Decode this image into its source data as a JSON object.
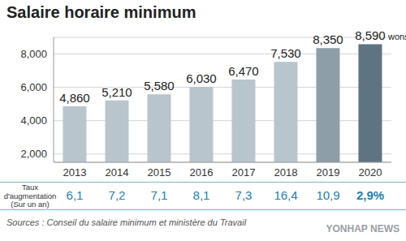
{
  "chart_data": {
    "type": "bar",
    "title": "Salaire horaire minimum",
    "categories": [
      "2013",
      "2014",
      "2015",
      "2016",
      "2017",
      "2018",
      "2019",
      "2020"
    ],
    "values": [
      4860,
      5210,
      5580,
      6030,
      6470,
      7530,
      8350,
      8590
    ],
    "value_labels": [
      "4,860",
      "5,210",
      "5,580",
      "6,030",
      "6,470",
      "7,530",
      "8,350",
      "8,590"
    ],
    "unit": "wons",
    "colors": [
      "#b9c5cd",
      "#b9c5cd",
      "#b9c5cd",
      "#b9c5cd",
      "#b9c5cd",
      "#b9c5cd",
      "#8e9ea9",
      "#5f7482"
    ],
    "ylim": [
      1500,
      9000
    ],
    "yticks": [
      {
        "value": 2000,
        "label": "2,000"
      },
      {
        "value": 4000,
        "label": "4,000"
      },
      {
        "value": 6000,
        "label": "6,000"
      },
      {
        "value": 8000,
        "label": "8,000"
      }
    ],
    "grid": true,
    "data_labels": true,
    "rates": {
      "label": [
        "Taux",
        "d'augmentation",
        "(Sur un an)"
      ],
      "values": [
        6.1,
        7.2,
        7.1,
        8.1,
        7.3,
        16.4,
        10.9,
        2.9
      ],
      "value_labels": [
        "6,1",
        "7,2",
        "7,1",
        "8,1",
        "7,3",
        "16,4",
        "10,9",
        "2,9%"
      ]
    },
    "source": "Sources : Conseil du salaire minimum et ministère du Travail",
    "watermark": "YONHAP NEWS"
  }
}
